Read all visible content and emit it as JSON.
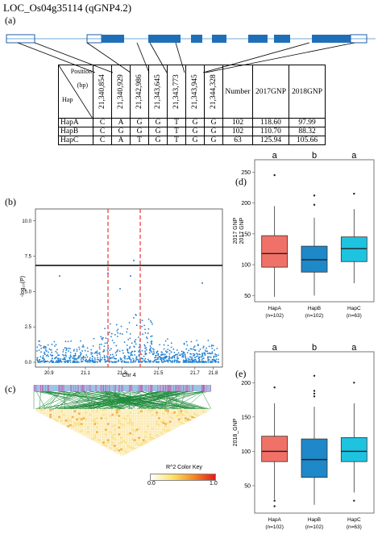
{
  "title": "LOC_Os04g35114 (qGNP4.2)",
  "labels": {
    "a": "(a)",
    "b": "(b)",
    "c": "(c)",
    "d": "(d)",
    "e": "(e)"
  },
  "table": {
    "header_position": "Position",
    "header_bp": "(bp)",
    "header_hap": "Hap",
    "positions": [
      "21,340,854",
      "21,340,929",
      "21,342,986",
      "21,343,645",
      "21,343,773",
      "21,343,945",
      "21,344,328"
    ],
    "col_number": "Number",
    "col_2017": "2017GNP",
    "col_2018": "2018GNP",
    "rows": [
      {
        "hap": "HapA",
        "alleles": [
          "C",
          "A",
          "G",
          "G",
          "T",
          "G",
          "G"
        ],
        "number": "102",
        "gnp2017": "118.60",
        "gnp2018": "97.99"
      },
      {
        "hap": "HapB",
        "alleles": [
          "C",
          "G",
          "G",
          "G",
          "T",
          "G",
          "G"
        ],
        "number": "102",
        "gnp2017": "110.70",
        "gnp2018": "88.32"
      },
      {
        "hap": "HapC",
        "alleles": [
          "C",
          "A",
          "T",
          "G",
          "T",
          "G",
          "G"
        ],
        "number": "63",
        "gnp2017": "125.94",
        "gnp2018": "105.66"
      }
    ]
  },
  "manhattan": {
    "xlabel": "Chr 4",
    "ylabel": "-log₁₀(P)",
    "yticks": [
      "0.0",
      "2.5",
      "5.0",
      "7.5",
      "10.0"
    ],
    "xticks": [
      "20.9",
      "21.1",
      "21.3",
      "21.5",
      "21.7",
      "21.8"
    ]
  },
  "ld": {
    "key_title": "R^2 Color Key",
    "key_min": "0.0",
    "key_max": "1.0"
  },
  "chart_data": [
    {
      "type": "box",
      "ylabel": "2017 GNP",
      "ylabel2": "2017 GNP",
      "yticks": [
        "50",
        "100",
        "150",
        "200",
        "250"
      ],
      "ylim": [
        40,
        270
      ],
      "categories": [
        "HapA",
        "HapB",
        "HapC"
      ],
      "counts": [
        "(n=102)",
        "(n=102)",
        "(n=63)"
      ],
      "letters": [
        "a",
        "b",
        "a"
      ],
      "colors": [
        "#f07167",
        "#1e88c8",
        "#1ec3e0"
      ],
      "boxes": [
        {
          "min": 48,
          "q1": 96,
          "median": 118,
          "q3": 147,
          "max": 195,
          "outliers": [
            245
          ]
        },
        {
          "min": 50,
          "q1": 88,
          "median": 108,
          "q3": 130,
          "max": 176,
          "outliers": [
            197,
            212
          ]
        },
        {
          "min": 70,
          "q1": 105,
          "median": 126,
          "q3": 145,
          "max": 190,
          "outliers": [
            215
          ]
        }
      ]
    },
    {
      "type": "box",
      "ylabel": "2018_GNP",
      "yticks": [
        "50",
        "100",
        "150",
        "200"
      ],
      "ylim": [
        10,
        245
      ],
      "categories": [
        "HapA",
        "HapB",
        "HapC"
      ],
      "counts": [
        "(n=102)",
        "(n=102)",
        "(n=63)"
      ],
      "letters": [
        "a",
        "b",
        "a"
      ],
      "colors": [
        "#f07167",
        "#1e88c8",
        "#1ec3e0"
      ],
      "boxes": [
        {
          "min": 30,
          "q1": 85,
          "median": 100,
          "q3": 122,
          "max": 170,
          "outliers": [
            193,
            28,
            20
          ]
        },
        {
          "min": 22,
          "q1": 62,
          "median": 88,
          "q3": 118,
          "max": 165,
          "outliers": [
            180,
            184,
            188,
            210
          ]
        },
        {
          "min": 40,
          "q1": 85,
          "median": 100,
          "q3": 120,
          "max": 170,
          "outliers": [
            200,
            28
          ]
        }
      ]
    }
  ]
}
